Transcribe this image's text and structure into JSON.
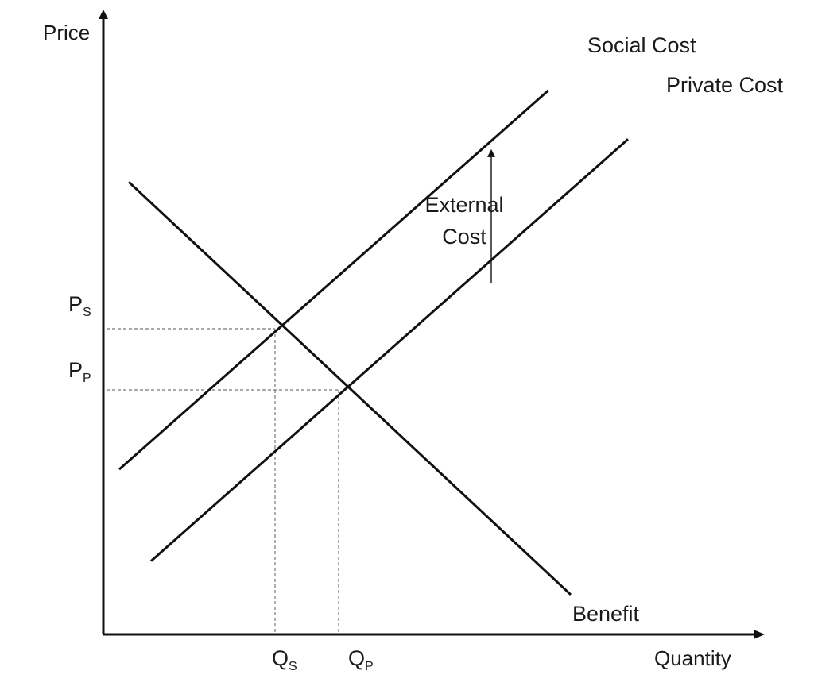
{
  "chart_data": {
    "type": "line",
    "title": "",
    "xlabel": "Quantity",
    "ylabel": "Price",
    "xlim": [
      0,
      10
    ],
    "ylim": [
      0,
      10
    ],
    "grid": false,
    "legend": "none",
    "series": [
      {
        "name": "Social Cost",
        "x": [
          0.25,
          7.0
        ],
        "y": [
          2.7,
          8.9
        ]
      },
      {
        "name": "Private Cost",
        "x": [
          0.75,
          8.25
        ],
        "y": [
          1.2,
          8.1
        ]
      },
      {
        "name": "Benefit",
        "x": [
          0.4,
          7.35
        ],
        "y": [
          7.4,
          0.65
        ]
      }
    ],
    "equilibria": [
      {
        "price_label": "P",
        "price_sub": "S",
        "quantity_label": "Q",
        "quantity_sub": "S",
        "x": 2.7,
        "y": 5.0
      },
      {
        "price_label": "P",
        "price_sub": "P",
        "quantity_label": "Q",
        "quantity_sub": "P",
        "x": 3.7,
        "y": 4.0
      }
    ],
    "annotation": {
      "text_line1": "External",
      "text_line2": "Cost",
      "arrow_x": 6.1,
      "arrow_from_y": 5.75,
      "arrow_to_y": 7.95
    },
    "colors": {
      "line": "#111111",
      "dashed": "#777777",
      "text": "#1a1a1a"
    }
  }
}
